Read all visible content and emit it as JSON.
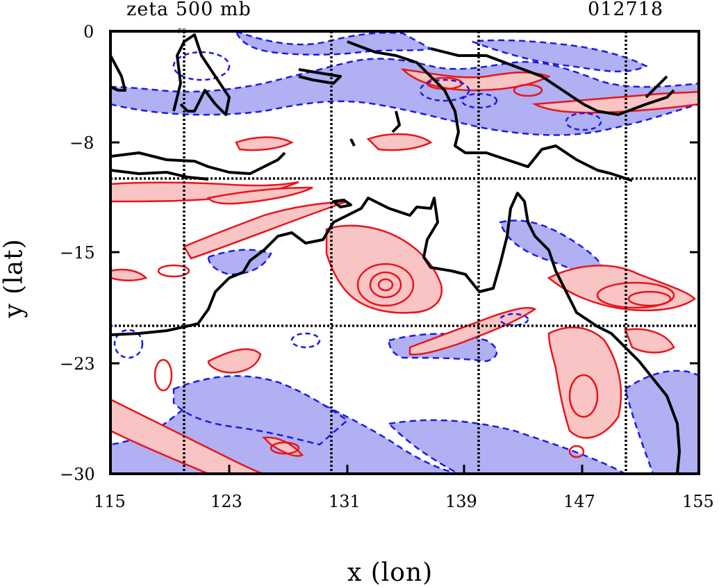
{
  "title": "zeta 500 mb",
  "run_id": "012718",
  "xlabel": "x (lon)",
  "ylabel": "y (lat)",
  "x_ticks": [
    "115",
    "123",
    "131",
    "139",
    "147",
    "155"
  ],
  "y_ticks": [
    "0",
    "−8",
    "−15",
    "−23",
    "−30"
  ],
  "station_label": "F0",
  "colors": {
    "positive_fill": "#f9c4c4",
    "positive_line": "#e8141c",
    "negative_fill": "#b0b0f2",
    "negative_line": "#1a1ae6",
    "coast": "#000000",
    "grid": "#000000"
  },
  "chart_data": {
    "type": "contour",
    "x_range": [
      115,
      155
    ],
    "y_range": [
      -30,
      0
    ],
    "grid_lines": {
      "lon": [
        120,
        130,
        140,
        150
      ],
      "lat": [
        -10,
        -20
      ]
    },
    "contours": "positive vorticity in red solid lines with pink fill, negative vorticity in blue dashed lines with light blue fill, coastlines in black"
  }
}
